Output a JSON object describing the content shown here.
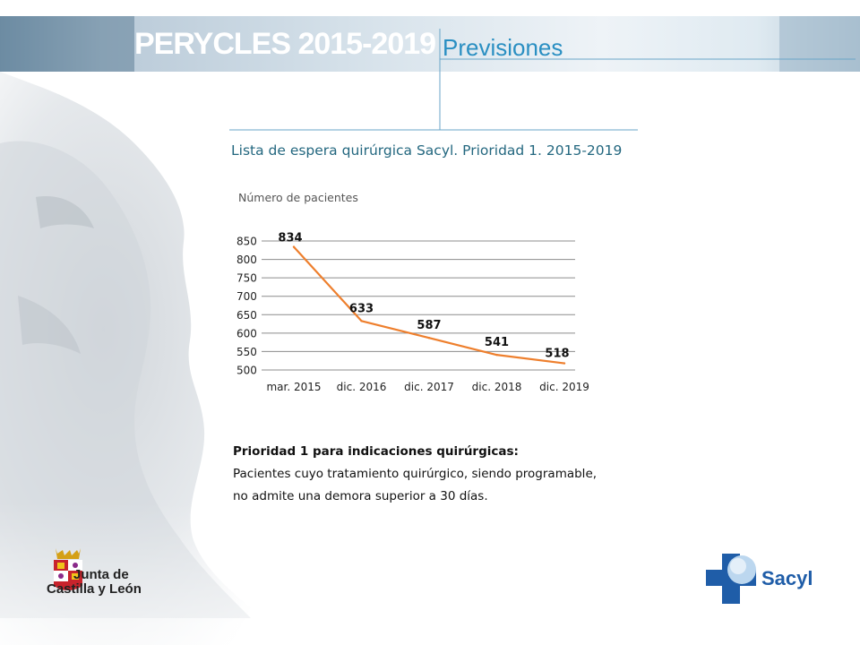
{
  "header": {
    "brand": "PERYCLES 2015-2019",
    "section": "Previsiones"
  },
  "chart_title": "Lista de espera quirúrgica Sacyl. Prioridad 1. 2015-2019",
  "colors": {
    "accent": "#2a8fc2",
    "line": "#ee7f2d",
    "title": "#23677f",
    "logo_blue": "#1f5da8"
  },
  "chart_data": {
    "type": "line",
    "ylabel": "Número de pacientes",
    "categories": [
      "mar. 2015",
      "dic. 2016",
      "dic. 2017",
      "dic. 2018",
      "dic. 2019"
    ],
    "series": [
      {
        "values": [
          834,
          633,
          587,
          541,
          518
        ]
      }
    ],
    "ylim": [
      500,
      850
    ],
    "yticks": [
      500,
      550,
      600,
      650,
      700,
      750,
      800,
      850
    ],
    "grid": true,
    "data_labels": true
  },
  "note": {
    "heading": "Prioridad 1 para indicaciones quirúrgicas:",
    "line1": "Pacientes cuyo tratamiento quirúrgico, siendo programable,",
    "line2": "no admite una demora superior a 30 días."
  },
  "logos": {
    "left_line1": "Junta de",
    "left_line2": "Castilla y León",
    "right": "Sacyl"
  },
  "icons": {
    "statue": "pericles-bust-image",
    "coat_of_arms": "castilla-leon-shield-icon",
    "sacyl_cross": "sacyl-cross-icon"
  }
}
